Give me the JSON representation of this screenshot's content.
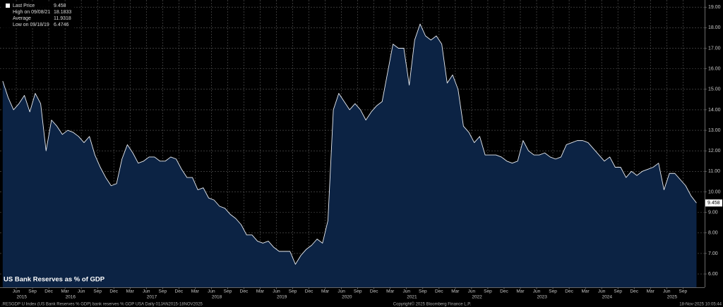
{
  "chart_data": {
    "type": "area",
    "title": "US Bank Reserves as % of GDP",
    "footer": ".RESGDP U Index (US Bank Reserves % GDP) bank reserves % GDP USA Daily 01JAN2015-18NOV2025",
    "copyright": "Copyright© 2025 Bloomberg Finance L.P.",
    "timestamp": "18-Nov-2025 10:05:44",
    "legend_stats": [
      {
        "label": "Last Price",
        "value": 9.458
      },
      {
        "label": "High on 09/08/21",
        "value": 18.1833
      },
      {
        "label": "Average",
        "value": 11.9318
      },
      {
        "label": "Low on 09/18/19",
        "value": 6.4746
      }
    ],
    "x": [
      "2015-03",
      "2015-04",
      "2015-05",
      "2015-06",
      "2015-07",
      "2015-08",
      "2015-09",
      "2015-10",
      "2015-11",
      "2015-12",
      "2016-01",
      "2016-02",
      "2016-03",
      "2016-04",
      "2016-05",
      "2016-06",
      "2016-07",
      "2016-08",
      "2016-09",
      "2016-10",
      "2016-11",
      "2016-12",
      "2017-01",
      "2017-02",
      "2017-03",
      "2017-04",
      "2017-05",
      "2017-06",
      "2017-07",
      "2017-08",
      "2017-09",
      "2017-10",
      "2017-11",
      "2017-12",
      "2018-01",
      "2018-02",
      "2018-03",
      "2018-04",
      "2018-05",
      "2018-06",
      "2018-07",
      "2018-08",
      "2018-09",
      "2018-10",
      "2018-11",
      "2018-12",
      "2019-01",
      "2019-02",
      "2019-03",
      "2019-04",
      "2019-05",
      "2019-06",
      "2019-07",
      "2019-08",
      "2019-09",
      "2019-10",
      "2019-11",
      "2019-12",
      "2020-01",
      "2020-02",
      "2020-03",
      "2020-04",
      "2020-05",
      "2020-06",
      "2020-07",
      "2020-08",
      "2020-09",
      "2020-10",
      "2020-11",
      "2020-12",
      "2021-01",
      "2021-02",
      "2021-03",
      "2021-04",
      "2021-05",
      "2021-06",
      "2021-07",
      "2021-08",
      "2021-09",
      "2021-10",
      "2021-11",
      "2021-12",
      "2022-01",
      "2022-02",
      "2022-03",
      "2022-04",
      "2022-05",
      "2022-06",
      "2022-07",
      "2022-08",
      "2022-09",
      "2022-10",
      "2022-11",
      "2022-12",
      "2023-01",
      "2023-02",
      "2023-03",
      "2023-04",
      "2023-05",
      "2023-06",
      "2023-07",
      "2023-08",
      "2023-09",
      "2023-10",
      "2023-11",
      "2023-12",
      "2024-01",
      "2024-02",
      "2024-03",
      "2024-04",
      "2024-05",
      "2024-06",
      "2024-07",
      "2024-08",
      "2024-09",
      "2024-10",
      "2024-11",
      "2024-12",
      "2025-01",
      "2025-02",
      "2025-03",
      "2025-04",
      "2025-05",
      "2025-06",
      "2025-07",
      "2025-08",
      "2025-09",
      "2025-10",
      "2025-11"
    ],
    "series": [
      {
        "name": "Last Price",
        "color": "#e8ecf2",
        "fill": "#0c2344",
        "values": [
          15.4,
          14.6,
          14.0,
          14.3,
          14.7,
          13.9,
          14.8,
          14.3,
          12.0,
          13.5,
          13.2,
          12.8,
          13.0,
          12.9,
          12.7,
          12.4,
          12.7,
          11.8,
          11.2,
          10.7,
          10.3,
          10.4,
          11.6,
          12.3,
          11.9,
          11.4,
          11.5,
          11.7,
          11.7,
          11.5,
          11.5,
          11.7,
          11.6,
          11.1,
          10.7,
          10.7,
          10.1,
          10.2,
          9.7,
          9.6,
          9.3,
          9.2,
          8.9,
          8.7,
          8.4,
          7.9,
          7.9,
          7.6,
          7.5,
          7.6,
          7.3,
          7.1,
          7.1,
          7.1,
          6.47,
          6.9,
          7.2,
          7.4,
          7.7,
          7.5,
          8.6,
          14.0,
          14.8,
          14.4,
          14.0,
          14.3,
          14.0,
          13.5,
          13.9,
          14.2,
          14.4,
          15.8,
          17.2,
          17.0,
          17.0,
          15.2,
          17.4,
          18.18,
          17.6,
          17.4,
          17.6,
          17.2,
          15.3,
          15.7,
          15.0,
          13.2,
          12.9,
          12.4,
          12.7,
          11.8,
          11.8,
          11.8,
          11.7,
          11.5,
          11.4,
          11.5,
          12.5,
          12.0,
          11.8,
          11.8,
          11.9,
          11.7,
          11.6,
          11.7,
          12.3,
          12.4,
          12.5,
          12.5,
          12.4,
          12.1,
          11.8,
          11.5,
          11.7,
          11.2,
          11.2,
          10.7,
          11.0,
          10.8,
          11.0,
          11.1,
          11.2,
          11.4,
          10.1,
          10.9,
          10.9,
          10.6,
          10.3,
          9.8,
          9.458
        ]
      }
    ],
    "xlim": [
      "2015-03",
      "2026-01"
    ],
    "xticks": [
      {
        "value": "2015-06",
        "label": "Jun"
      },
      {
        "value": "2015-09",
        "label": "Sep"
      },
      {
        "value": "2015-12",
        "label": "Dec"
      },
      {
        "value": "2016-03",
        "label": "Mar"
      },
      {
        "value": "2016-06",
        "label": "Jun"
      },
      {
        "value": "2016-09",
        "label": "Sep"
      },
      {
        "value": "2016-12",
        "label": "Dec"
      },
      {
        "value": "2017-03",
        "label": "Mar"
      },
      {
        "value": "2017-06",
        "label": "Jun"
      },
      {
        "value": "2017-09",
        "label": "Sep"
      },
      {
        "value": "2017-12",
        "label": "Dec"
      },
      {
        "value": "2018-03",
        "label": "Mar"
      },
      {
        "value": "2018-06",
        "label": "Jun"
      },
      {
        "value": "2018-09",
        "label": "Sep"
      },
      {
        "value": "2018-12",
        "label": "Dec"
      },
      {
        "value": "2019-03",
        "label": "Mar"
      },
      {
        "value": "2019-06",
        "label": "Jun"
      },
      {
        "value": "2019-09",
        "label": "Sep"
      },
      {
        "value": "2019-12",
        "label": "Dec"
      },
      {
        "value": "2020-03",
        "label": "Mar"
      },
      {
        "value": "2020-06",
        "label": "Jun"
      },
      {
        "value": "2020-09",
        "label": "Sep"
      },
      {
        "value": "2020-12",
        "label": "Dec"
      },
      {
        "value": "2021-03",
        "label": "Mar"
      },
      {
        "value": "2021-06",
        "label": "Jun"
      },
      {
        "value": "2021-09",
        "label": "Sep"
      },
      {
        "value": "2021-12",
        "label": "Dec"
      },
      {
        "value": "2022-03",
        "label": "Mar"
      },
      {
        "value": "2022-06",
        "label": "Jun"
      },
      {
        "value": "2022-09",
        "label": "Sep"
      },
      {
        "value": "2022-12",
        "label": "Dec"
      },
      {
        "value": "2023-03",
        "label": "Mar"
      },
      {
        "value": "2023-06",
        "label": "Jun"
      },
      {
        "value": "2023-09",
        "label": "Sep"
      },
      {
        "value": "2023-12",
        "label": "Dec"
      },
      {
        "value": "2024-03",
        "label": "Mar"
      },
      {
        "value": "2024-06",
        "label": "Jun"
      },
      {
        "value": "2024-09",
        "label": "Sep"
      },
      {
        "value": "2024-12",
        "label": "Dec"
      },
      {
        "value": "2025-03",
        "label": "Mar"
      },
      {
        "value": "2025-06",
        "label": "Jun"
      },
      {
        "value": "2025-09",
        "label": "Sep"
      }
    ],
    "year_labels": [
      {
        "value": "2015-07",
        "label": "2015"
      },
      {
        "value": "2016-04",
        "label": "2016"
      },
      {
        "value": "2017-07",
        "label": "2017"
      },
      {
        "value": "2018-07",
        "label": "2018"
      },
      {
        "value": "2019-07",
        "label": "2019"
      },
      {
        "value": "2020-07",
        "label": "2020"
      },
      {
        "value": "2021-07",
        "label": "2021"
      },
      {
        "value": "2022-07",
        "label": "2022"
      },
      {
        "value": "2023-07",
        "label": "2023"
      },
      {
        "value": "2024-07",
        "label": "2024"
      },
      {
        "value": "2025-07",
        "label": "2025"
      }
    ],
    "ylim": [
      5.35,
      19.35
    ],
    "yticks": [
      {
        "value": 6,
        "label": "6.00"
      },
      {
        "value": 7,
        "label": "7.00"
      },
      {
        "value": 8,
        "label": "8.00"
      },
      {
        "value": 9,
        "label": "9.00"
      },
      {
        "value": 10,
        "label": "10.00"
      },
      {
        "value": 11,
        "label": "11.00"
      },
      {
        "value": 12,
        "label": "12.00"
      },
      {
        "value": 13,
        "label": "13.00"
      },
      {
        "value": 14,
        "label": "14.00"
      },
      {
        "value": 15,
        "label": "15.00"
      },
      {
        "value": 16,
        "label": "16.00"
      },
      {
        "value": 17,
        "label": "17.00"
      },
      {
        "value": 18,
        "label": "18.00"
      },
      {
        "value": 19,
        "label": "19.00"
      }
    ],
    "grid": true
  }
}
